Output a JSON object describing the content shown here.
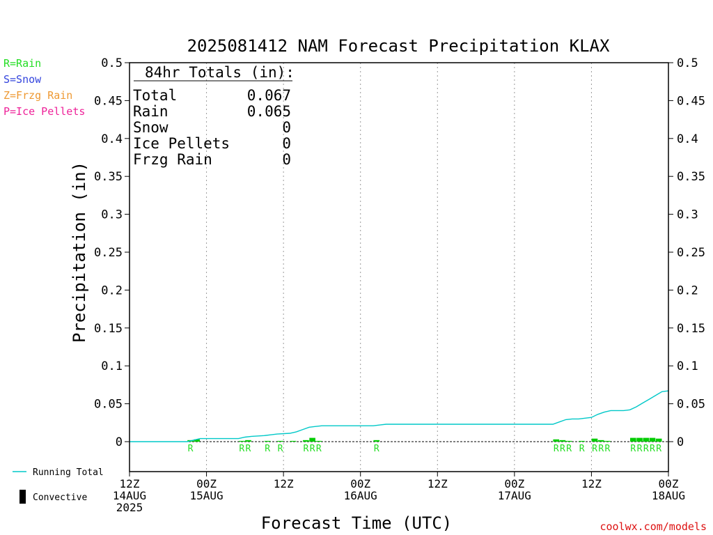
{
  "chart_data": {
    "type": "bar",
    "title": "2025081412 NAM Forecast Precipitation KLAX",
    "xlabel": "Forecast Time (UTC)",
    "ylabel": "Precipitation (in)",
    "ylim": [
      0,
      0.5
    ],
    "xlim_hours": [
      0,
      84
    ],
    "grid": "vertical dotted at each 12-hour tick",
    "y_ticks": [
      "0",
      "0.05",
      "0.1",
      "0.15",
      "0.2",
      "0.25",
      "0.3",
      "0.35",
      "0.4",
      "0.45",
      "0.5"
    ],
    "x_ticks": [
      {
        "hour": 0,
        "lines": [
          "12Z",
          "14AUG",
          "2025"
        ]
      },
      {
        "hour": 12,
        "lines": [
          "00Z",
          "15AUG"
        ]
      },
      {
        "hour": 24,
        "lines": [
          "12Z"
        ]
      },
      {
        "hour": 36,
        "lines": [
          "00Z",
          "16AUG"
        ]
      },
      {
        "hour": 48,
        "lines": [
          "12Z"
        ]
      },
      {
        "hour": 60,
        "lines": [
          "00Z",
          "17AUG"
        ]
      },
      {
        "hour": 72,
        "lines": [
          "12Z"
        ]
      },
      {
        "hour": 84,
        "lines": [
          "00Z",
          "18AUG"
        ]
      }
    ],
    "legend_types": [
      {
        "label": "R=Rain",
        "color": "#22dd22"
      },
      {
        "label": "S=Snow",
        "color": "#3344dd"
      },
      {
        "label": "Z=Frzg Rain",
        "color": "#ee9933"
      },
      {
        "label": "P=Ice Pellets",
        "color": "#ee2299"
      }
    ],
    "legend_bottom": [
      {
        "label": "Running Total",
        "color": "#00c8c8"
      },
      {
        "label": "Convective",
        "color": "#000000"
      }
    ],
    "totals": {
      "header": "84hr Totals (in):",
      "rows": [
        {
          "label": "Total",
          "value": "0.067"
        },
        {
          "label": "Rain",
          "value": "0.065"
        },
        {
          "label": "Snow",
          "value": "0"
        },
        {
          "label": "Ice Pellets",
          "value": "0"
        },
        {
          "label": "Frzg Rain",
          "value": "0"
        }
      ]
    },
    "series": [
      {
        "name": "Rain",
        "color": "#00cc00",
        "bars": [
          {
            "hour": 10,
            "value": 0.002,
            "label": "R"
          },
          {
            "hour": 11,
            "value": 0.003
          },
          {
            "hour": 18,
            "value": 0.001,
            "label": "R"
          },
          {
            "hour": 19,
            "value": 0.002,
            "label": "R"
          },
          {
            "hour": 22,
            "value": 0.001,
            "label": "R"
          },
          {
            "hour": 24,
            "value": 0.001,
            "label": "R"
          },
          {
            "hour": 26,
            "value": 0.001
          },
          {
            "hour": 28,
            "value": 0.002,
            "label": "R"
          },
          {
            "hour": 29,
            "value": 0.005,
            "label": "R"
          },
          {
            "hour": 30,
            "value": 0.001,
            "label": "R"
          },
          {
            "hour": 39,
            "value": 0.002,
            "label": "R"
          },
          {
            "hour": 67,
            "value": 0.003,
            "label": "R"
          },
          {
            "hour": 68,
            "value": 0.002,
            "label": "R"
          },
          {
            "hour": 69,
            "value": 0.001,
            "label": "R"
          },
          {
            "hour": 71,
            "value": 0.001,
            "label": "R"
          },
          {
            "hour": 73,
            "value": 0.004,
            "label": "R"
          },
          {
            "hour": 74,
            "value": 0.002,
            "label": "R"
          },
          {
            "hour": 75,
            "value": 0.001,
            "label": "R"
          },
          {
            "hour": 79,
            "value": 0.005,
            "label": "R"
          },
          {
            "hour": 80,
            "value": 0.005,
            "label": "R"
          },
          {
            "hour": 81,
            "value": 0.005,
            "label": "R"
          },
          {
            "hour": 82,
            "value": 0.005,
            "label": "R"
          },
          {
            "hour": 83,
            "value": 0.004,
            "label": "R"
          }
        ]
      },
      {
        "name": "Running Total",
        "color": "#00c8c8",
        "points": [
          [
            0,
            0
          ],
          [
            9,
            0
          ],
          [
            10,
            0.002
          ],
          [
            11,
            0.004
          ],
          [
            15,
            0.004
          ],
          [
            17,
            0.004
          ],
          [
            18,
            0.006
          ],
          [
            19,
            0.007
          ],
          [
            21,
            0.008
          ],
          [
            22,
            0.009
          ],
          [
            23,
            0.01
          ],
          [
            25,
            0.011
          ],
          [
            26,
            0.013
          ],
          [
            27,
            0.016
          ],
          [
            28,
            0.019
          ],
          [
            29,
            0.02
          ],
          [
            30,
            0.021
          ],
          [
            38,
            0.021
          ],
          [
            39,
            0.022
          ],
          [
            40,
            0.023
          ],
          [
            66,
            0.023
          ],
          [
            67,
            0.026
          ],
          [
            68,
            0.029
          ],
          [
            69,
            0.03
          ],
          [
            70,
            0.03
          ],
          [
            71,
            0.031
          ],
          [
            72,
            0.032
          ],
          [
            73,
            0.036
          ],
          [
            74,
            0.039
          ],
          [
            75,
            0.041
          ],
          [
            77,
            0.041
          ],
          [
            78,
            0.042
          ],
          [
            79,
            0.046
          ],
          [
            80,
            0.051
          ],
          [
            81,
            0.056
          ],
          [
            82,
            0.061
          ],
          [
            83,
            0.066
          ],
          [
            84,
            0.067
          ]
        ]
      }
    ]
  },
  "credit": "coolwx.com/models"
}
